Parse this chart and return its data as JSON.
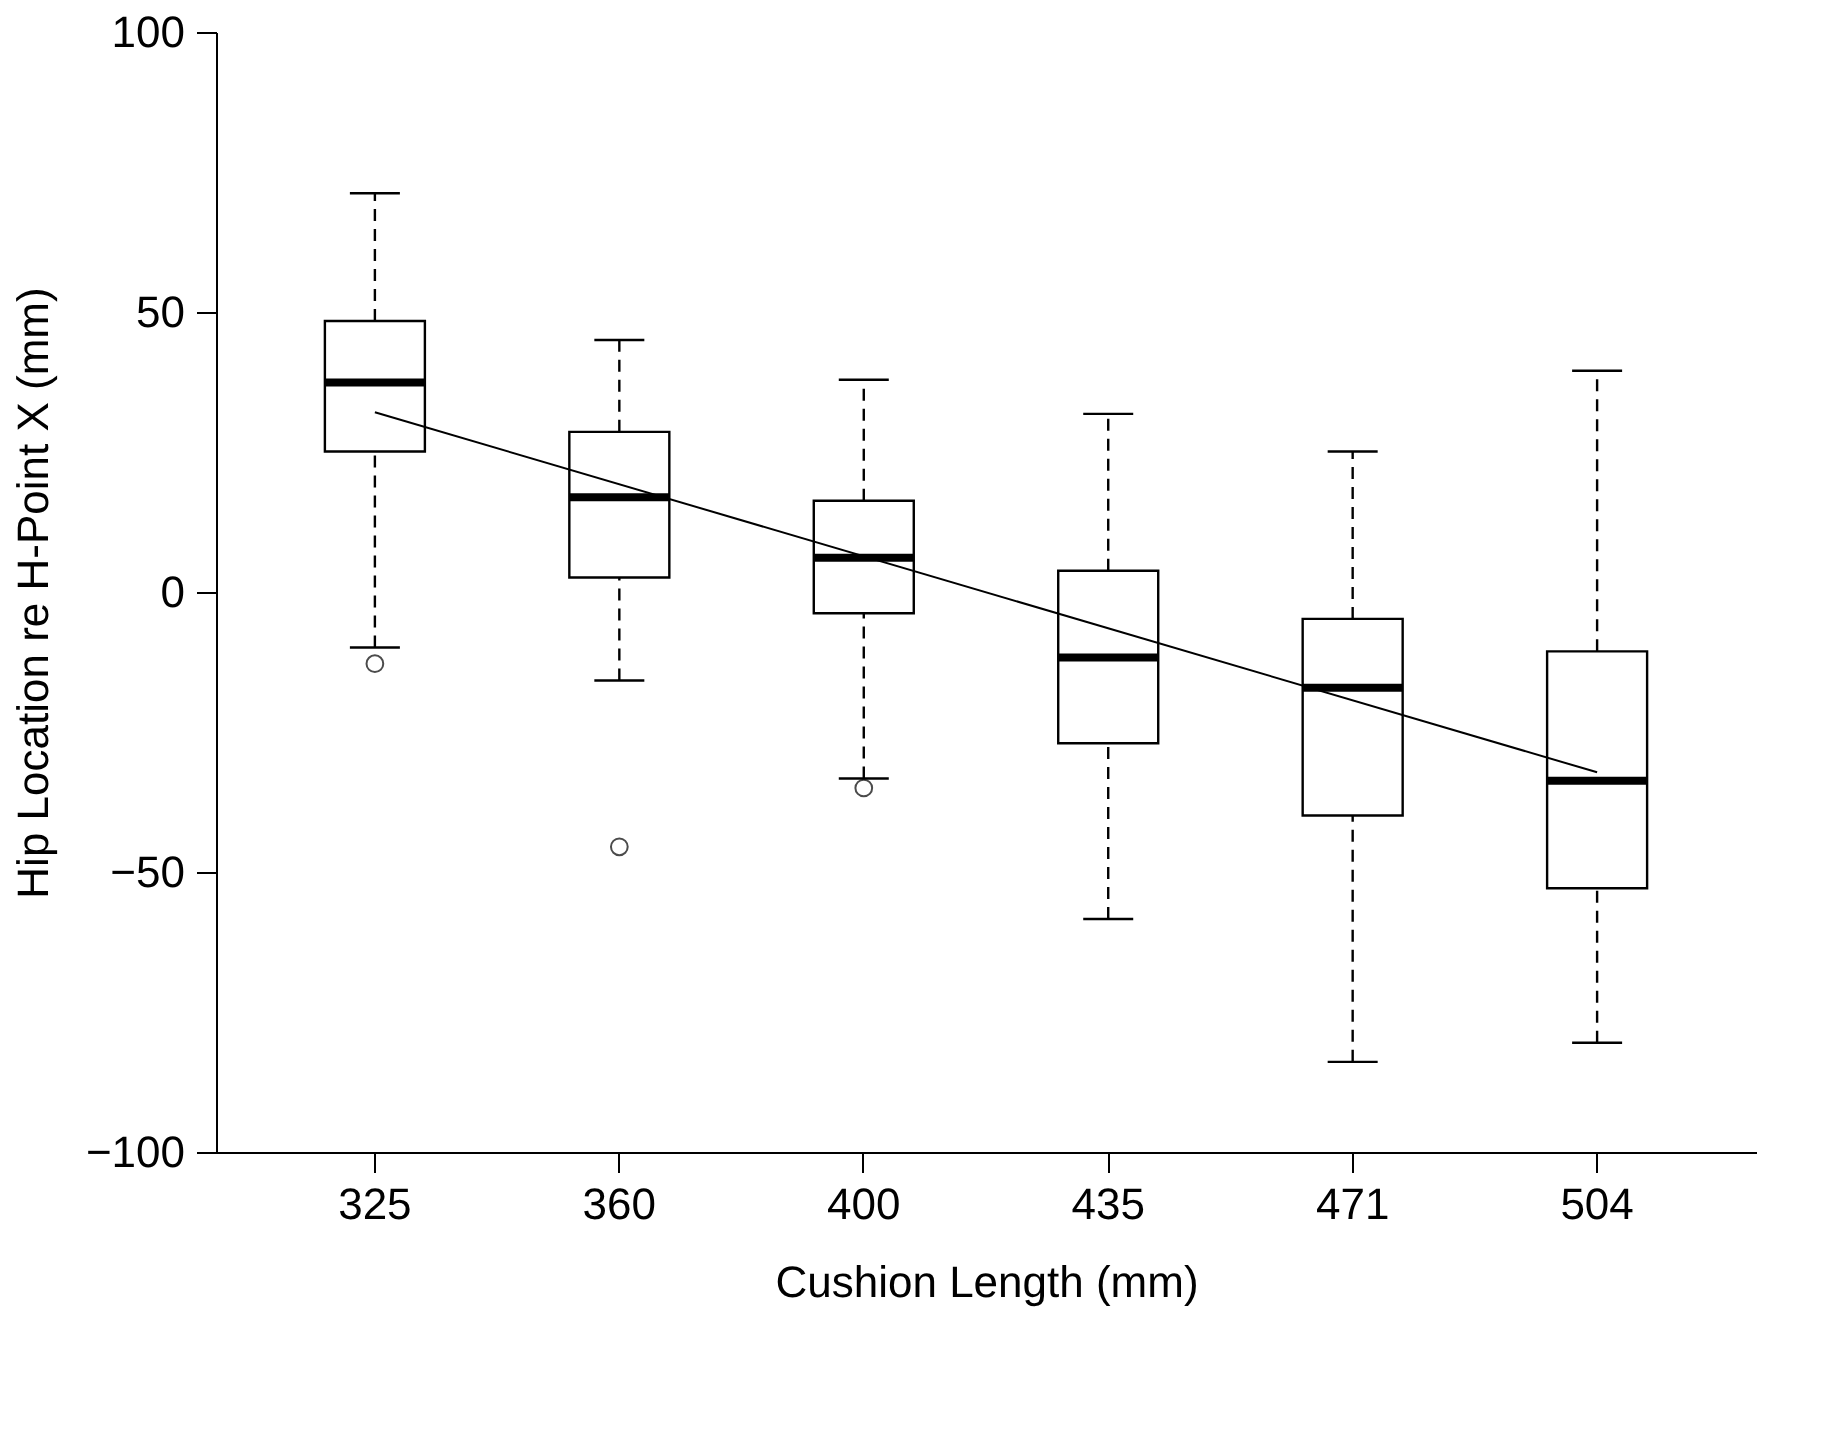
{
  "chart_data": {
    "type": "box",
    "xlabel": "Cushion Length (mm)",
    "ylabel": "Hip Location re H-Point X (mm)",
    "categories": [
      "325",
      "360",
      "400",
      "435",
      "471",
      "504"
    ],
    "boxes": [
      {
        "low": -9.9,
        "q1": 25.1,
        "median": 37.4,
        "q3": 48.4,
        "high": 71.2,
        "outliers": [
          -12.8
        ]
      },
      {
        "low": -15.8,
        "q1": 2.6,
        "median": 16.9,
        "q3": 28.6,
        "high": 45.0,
        "outliers": [
          -45.5
        ]
      },
      {
        "low": -33.3,
        "q1": -3.8,
        "median": 6.1,
        "q3": 16.3,
        "high": 37.9,
        "outliers": [
          -35.0
        ]
      },
      {
        "low": -58.4,
        "q1": -27.0,
        "median": -11.7,
        "q3": 3.8,
        "high": 31.8
      },
      {
        "low": -83.9,
        "q1": -39.9,
        "median": -17.1,
        "q3": -4.8,
        "high": 25.1
      },
      {
        "low": -80.5,
        "q1": -52.9,
        "median": -33.7,
        "q3": -10.6,
        "high": 39.5
      }
    ],
    "series": [
      {
        "type": "line",
        "x": [
          "325",
          "504"
        ],
        "values": [
          32.1,
          -32.2
        ],
        "color": "#000000"
      }
    ],
    "ylim": [
      -100,
      100
    ],
    "yticks": [
      -100,
      -50,
      0,
      50,
      100
    ],
    "grid": false
  }
}
